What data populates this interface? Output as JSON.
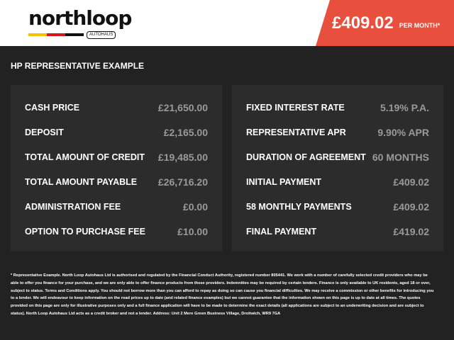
{
  "brand": {
    "name": "northloop",
    "sub": "AUTOHAUS",
    "stripe_colors": [
      "#f2c500",
      "#d8141b",
      "#111111"
    ]
  },
  "header": {
    "price": "£409.02",
    "per_month": "PER MONTH*",
    "accent": "#e84f3d"
  },
  "title": "HP REPRESENTATIVE EXAMPLE",
  "left": [
    {
      "label": "CASH PRICE",
      "value": "£21,650.00"
    },
    {
      "label": "DEPOSIT",
      "value": "£2,165.00"
    },
    {
      "label": "TOTAL AMOUNT OF CREDIT",
      "value": "£19,485.00"
    },
    {
      "label": "TOTAL AMOUNT PAYABLE",
      "value": "£26,716.20"
    },
    {
      "label": "ADMINISTRATION FEE",
      "value": "£0.00"
    },
    {
      "label": "OPTION TO PURCHASE FEE",
      "value": "£10.00"
    }
  ],
  "right": [
    {
      "label": "FIXED INTEREST RATE",
      "value": "5.19% P.A."
    },
    {
      "label": "REPRESENTATIVE APR",
      "value": "9.90% APR"
    },
    {
      "label": "DURATION OF AGREEMENT",
      "value": "60 MONTHS"
    },
    {
      "label": "INITIAL PAYMENT",
      "value": "£409.02"
    },
    {
      "label": "58 MONTHLY PAYMENTS",
      "value": "£409.02"
    },
    {
      "label": "FINAL PAYMENT",
      "value": "£419.02"
    }
  ],
  "disclaimer": "* Representative Example. North Loop Autohaus Ltd is authorised and regulated by the Financial Conduct Authority, registered number 805441. We work with a number of carefully selected credit providers who may be able to offer you finance for your purchase, and we are only able to offer finance products from these providers. Indemnities may be required by certain lenders. Finance is only available to UK residents, aged 18 or over, subject to status. Terms and Conditions apply. You should not borrow more than you can afford to repay as doing so can cause you financial difficulties. We may receive a commission or other benefits for introducing you to a lender. We will endeavour to keep information on the road prices up to date (and related finance examples) but we cannot guarantee that the information shown on this page is up to date at all times. The quotes provided on this page are only for illustrative purposes only and a full finance application will have to be made to determine the exact details (all applications are subject to an underwriting decision and are subject to status). North Loop Autohaus Ltd acts as a credit broker and not a lender. Address: Unit 2 Mere Green Business Village, Droitwich, WR9 7GA"
}
